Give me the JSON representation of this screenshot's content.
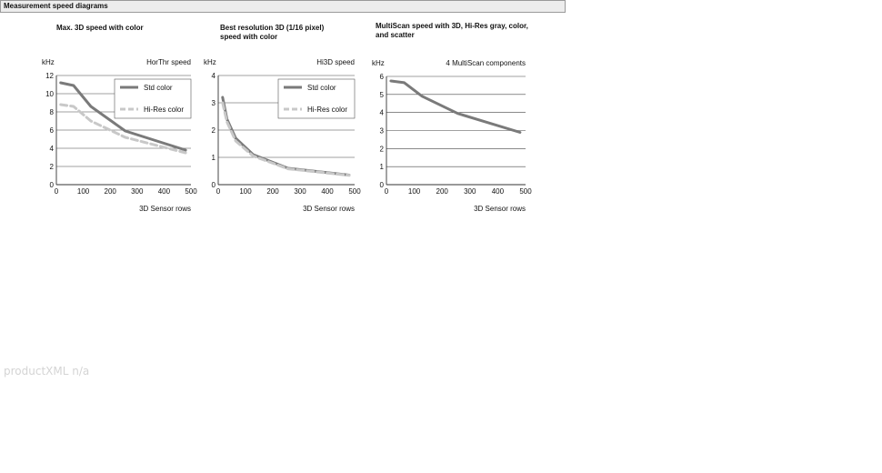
{
  "section": {
    "title": "Measurement speed diagrams"
  },
  "footer": {
    "note": "productXML n/a"
  },
  "chart_data": [
    {
      "type": "line",
      "title": "Max. 3D speed with color",
      "ylabel": "kHz",
      "xlabel": "3D Sensor rows",
      "corner_label": "HorThr speed",
      "xlim": [
        0,
        500
      ],
      "ylim": [
        0,
        12
      ],
      "xticks": [
        0,
        100,
        200,
        300,
        400,
        500
      ],
      "yticks": [
        0,
        2,
        4,
        6,
        8,
        10,
        12
      ],
      "grid": "horizontal",
      "legend": "top-right",
      "series": [
        {
          "name": "Std color",
          "color": "#7a7a7a",
          "dashed": false,
          "x": [
            16,
            64,
            128,
            256,
            480
          ],
          "y": [
            11.2,
            10.9,
            8.6,
            5.9,
            3.8
          ]
        },
        {
          "name": "Hi-Res color",
          "color": "#c8c8c8",
          "dashed": true,
          "x": [
            16,
            64,
            128,
            256,
            480
          ],
          "y": [
            8.8,
            8.6,
            7.0,
            5.2,
            3.5
          ]
        }
      ]
    },
    {
      "type": "line",
      "title": "Best resolution 3D (1/16 pixel) speed with color",
      "ylabel": "kHz",
      "xlabel": "3D Sensor rows",
      "corner_label": "Hi3D speed",
      "xlim": [
        0,
        500
      ],
      "ylim": [
        0,
        4
      ],
      "xticks": [
        0,
        100,
        200,
        300,
        400,
        500
      ],
      "yticks": [
        0,
        1,
        2,
        3,
        4
      ],
      "grid": "horizontal",
      "legend": "top-right",
      "series": [
        {
          "name": "Std color",
          "color": "#7a7a7a",
          "dashed": false,
          "x": [
            16,
            32,
            64,
            128,
            256,
            480
          ],
          "y": [
            3.2,
            2.4,
            1.7,
            1.1,
            0.6,
            0.35
          ]
        },
        {
          "name": "Hi-Res color",
          "color": "#c8c8c8",
          "dashed": true,
          "x": [
            16,
            32,
            64,
            128,
            256,
            480
          ],
          "y": [
            3.0,
            2.3,
            1.6,
            1.05,
            0.58,
            0.34
          ]
        }
      ]
    },
    {
      "type": "line",
      "title": "MultiScan speed with 3D, Hi-Res gray, color, and scatter",
      "ylabel": "kHz",
      "xlabel": "3D Sensor rows",
      "corner_label": "4 MultiScan components",
      "xlim": [
        0,
        500
      ],
      "ylim": [
        0,
        6
      ],
      "xticks": [
        0,
        100,
        200,
        300,
        400,
        500
      ],
      "yticks": [
        0,
        1,
        2,
        3,
        4,
        5,
        6
      ],
      "grid": "horizontal",
      "legend": "none",
      "series": [
        {
          "color": "#7a7a7a",
          "dashed": false,
          "x": [
            16,
            64,
            128,
            256,
            480
          ],
          "y": [
            5.75,
            5.65,
            4.9,
            3.95,
            2.9
          ]
        }
      ]
    }
  ]
}
